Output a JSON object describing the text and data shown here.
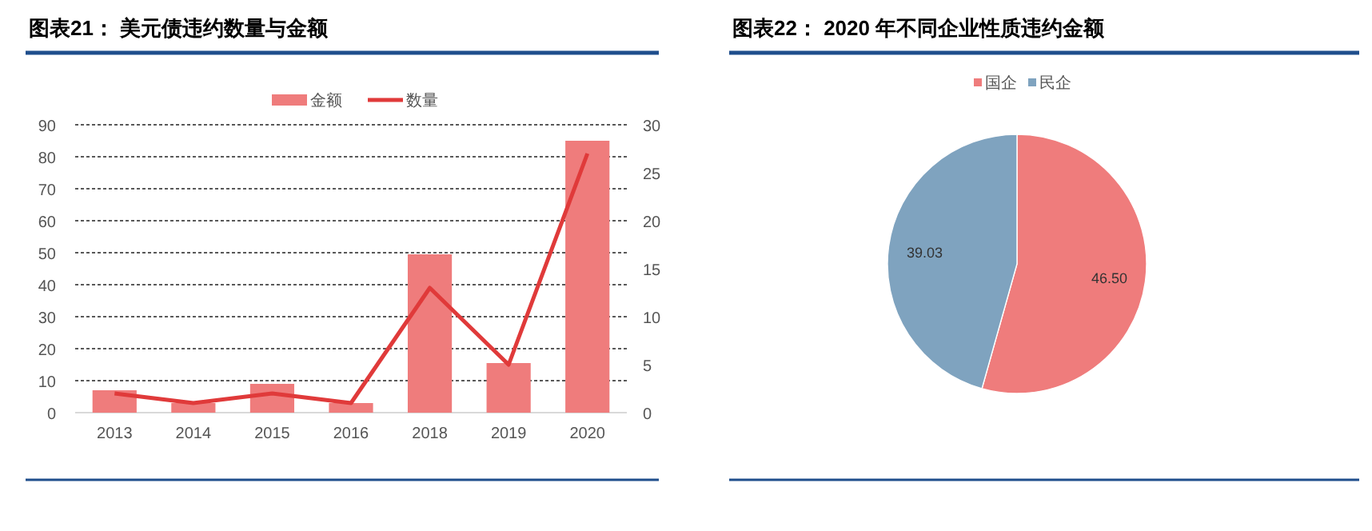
{
  "chart_data": [
    {
      "type": "bar",
      "title": "图表21： 美元债违约数量与金额",
      "categories": [
        "2013",
        "2014",
        "2015",
        "2016",
        "2018",
        "2019",
        "2020"
      ],
      "series": [
        {
          "name": "金额",
          "type": "bar",
          "color": "#ef7c7c",
          "values": [
            7,
            3,
            9,
            3,
            49.5,
            15.5,
            85
          ]
        },
        {
          "name": "数量",
          "type": "line",
          "axis": "y2",
          "color": "#e03a3a",
          "values": [
            2,
            1,
            2,
            1,
            13,
            5,
            27
          ]
        }
      ],
      "ylim": [
        0,
        90
      ],
      "yticks": [
        0,
        10,
        20,
        30,
        40,
        50,
        60,
        70,
        80,
        90
      ],
      "y2lim": [
        0,
        30
      ],
      "y2ticks": [
        0,
        5,
        10,
        15,
        20,
        25,
        30
      ],
      "grid": "y",
      "legend": "top",
      "marker": "none",
      "line_style": "solid"
    },
    {
      "type": "pie",
      "title": "图表22： 2020 年不同企业性质违约金额",
      "categories": [
        "国企",
        "民企"
      ],
      "values": [
        46.5,
        39.03
      ],
      "colors": [
        "#ef7c7c",
        "#7fa3bf"
      ],
      "value_labels": [
        "46.50",
        "39.03"
      ],
      "legend": "top"
    }
  ]
}
